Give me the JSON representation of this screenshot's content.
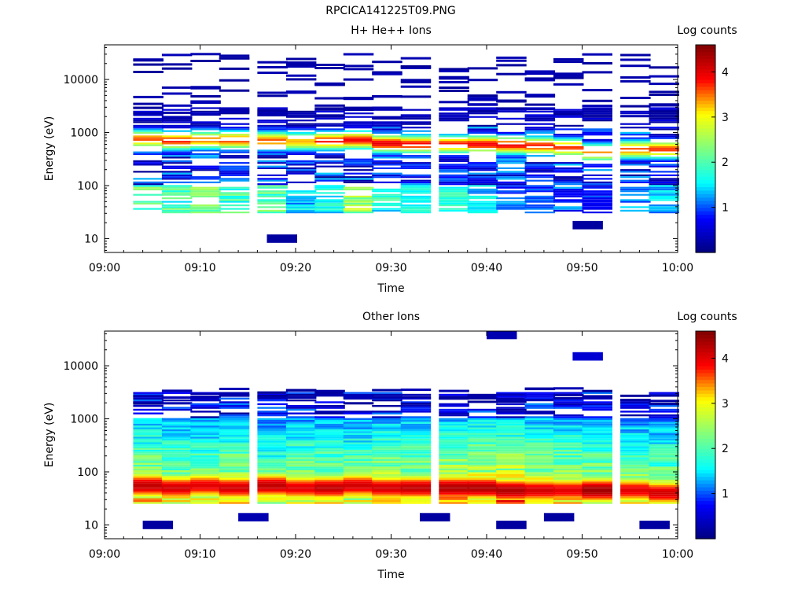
{
  "figure_title": "RPCICA141225T09.PNG",
  "colors": {
    "background": "#ffffff",
    "axis": "#000000",
    "colormap": [
      "#00007f",
      "#0000ff",
      "#00ffff",
      "#7fff7f",
      "#ffff00",
      "#ff0000",
      "#7f0000"
    ]
  },
  "chart_data": [
    {
      "type": "heatmap",
      "title": "H+ He++ Ions",
      "xlabel": "Time",
      "ylabel": "Energy (eV)",
      "xlim": [
        "09:00",
        "10:00"
      ],
      "xticks": [
        "09:00",
        "09:10",
        "09:20",
        "09:30",
        "09:40",
        "09:50",
        "10:00"
      ],
      "y_scale": "log",
      "ylim": [
        5.5,
        45000
      ],
      "yticks": [
        "10",
        "100",
        "1000",
        "10000"
      ],
      "colorbar": {
        "label": "Log counts",
        "range": [
          0,
          4.6
        ],
        "ticks": [
          "1",
          "2",
          "3",
          "4"
        ]
      },
      "time_bins": [
        "09:03",
        "09:06",
        "09:09",
        "09:12",
        "09:16",
        "09:19",
        "09:22",
        "09:25",
        "09:28",
        "09:31",
        "09:35",
        "09:38",
        "09:41",
        "09:44",
        "09:47",
        "09:50",
        "09:54",
        "09:57"
      ],
      "core": {
        "energy_range_eV": [
          30,
          3000
        ],
        "peak_energy_eV": [
          750,
          700,
          720,
          720,
          700,
          680,
          700,
          720,
          620,
          600,
          600,
          600,
          580,
          560,
          520,
          420,
          480,
          480
        ],
        "peak_log_counts": [
          3.6,
          3.8,
          3.5,
          3.7,
          3.6,
          3.3,
          3.8,
          3.9,
          4.0,
          3.9,
          3.8,
          3.9,
          3.9,
          3.8,
          3.7,
          3.4,
          3.6,
          3.7
        ],
        "low_energy_log_counts": [
          2.2,
          2.0,
          2.2,
          2.0,
          2.3,
          1.5,
          1.6,
          2.4,
          1.8,
          1.8,
          1.7,
          1.5,
          1.0,
          1.0,
          0.8,
          0.7,
          1.3,
          1.4
        ]
      },
      "isolated_counts": [
        {
          "time": "09:17",
          "energy_eV": 10,
          "log_counts": 0.2
        },
        {
          "time": "09:49",
          "energy_eV": 18,
          "log_counts": 0.2
        }
      ]
    },
    {
      "type": "heatmap",
      "title": "Other Ions",
      "xlabel": "Time",
      "ylabel": "Energy (eV)",
      "xlim": [
        "09:00",
        "10:00"
      ],
      "xticks": [
        "09:00",
        "09:10",
        "09:20",
        "09:30",
        "09:40",
        "09:50",
        "10:00"
      ],
      "y_scale": "log",
      "ylim": [
        5.5,
        45000
      ],
      "yticks": [
        "10",
        "100",
        "1000",
        "10000"
      ],
      "colorbar": {
        "label": "Log counts",
        "range": [
          0,
          4.6
        ],
        "ticks": [
          "1",
          "2",
          "3",
          "4"
        ]
      },
      "time_bins": [
        "09:03",
        "09:06",
        "09:09",
        "09:12",
        "09:16",
        "09:19",
        "09:22",
        "09:25",
        "09:28",
        "09:31",
        "09:35",
        "09:38",
        "09:41",
        "09:44",
        "09:47",
        "09:50",
        "09:54",
        "09:57"
      ],
      "core": {
        "energy_range_eV": [
          25,
          3200
        ],
        "peak_energy_eV": [
          55,
          50,
          55,
          50,
          55,
          50,
          50,
          55,
          50,
          50,
          50,
          50,
          45,
          45,
          45,
          45,
          45,
          40
        ],
        "peak_log_counts": [
          4.2,
          4.1,
          4.0,
          4.1,
          4.2,
          4.0,
          4.2,
          4.1,
          4.1,
          4.2,
          4.3,
          4.3,
          4.3,
          4.1,
          4.0,
          4.4,
          4.0,
          4.1
        ],
        "low_energy_log_counts": [
          2.5,
          2.4,
          2.3,
          2.5,
          2.2,
          2.4,
          2.4,
          2.3,
          2.6,
          2.5,
          2.6,
          2.7,
          2.8,
          2.6,
          2.5,
          2.4,
          2.3,
          2.2
        ]
      },
      "isolated_counts": [
        {
          "time": "09:04",
          "energy_eV": 10,
          "log_counts": 0.2
        },
        {
          "time": "09:14",
          "energy_eV": 14,
          "log_counts": 0.3
        },
        {
          "time": "09:33",
          "energy_eV": 14,
          "log_counts": 0.2
        },
        {
          "time": "09:41",
          "energy_eV": 10,
          "log_counts": 0.2
        },
        {
          "time": "09:46",
          "energy_eV": 14,
          "log_counts": 0.2
        },
        {
          "time": "09:56",
          "energy_eV": 10,
          "log_counts": 0.2
        },
        {
          "time": "09:49",
          "energy_eV": 15000,
          "log_counts": 0.5
        },
        {
          "time": "09:40",
          "energy_eV": 38000,
          "log_counts": 0.3
        }
      ]
    }
  ]
}
